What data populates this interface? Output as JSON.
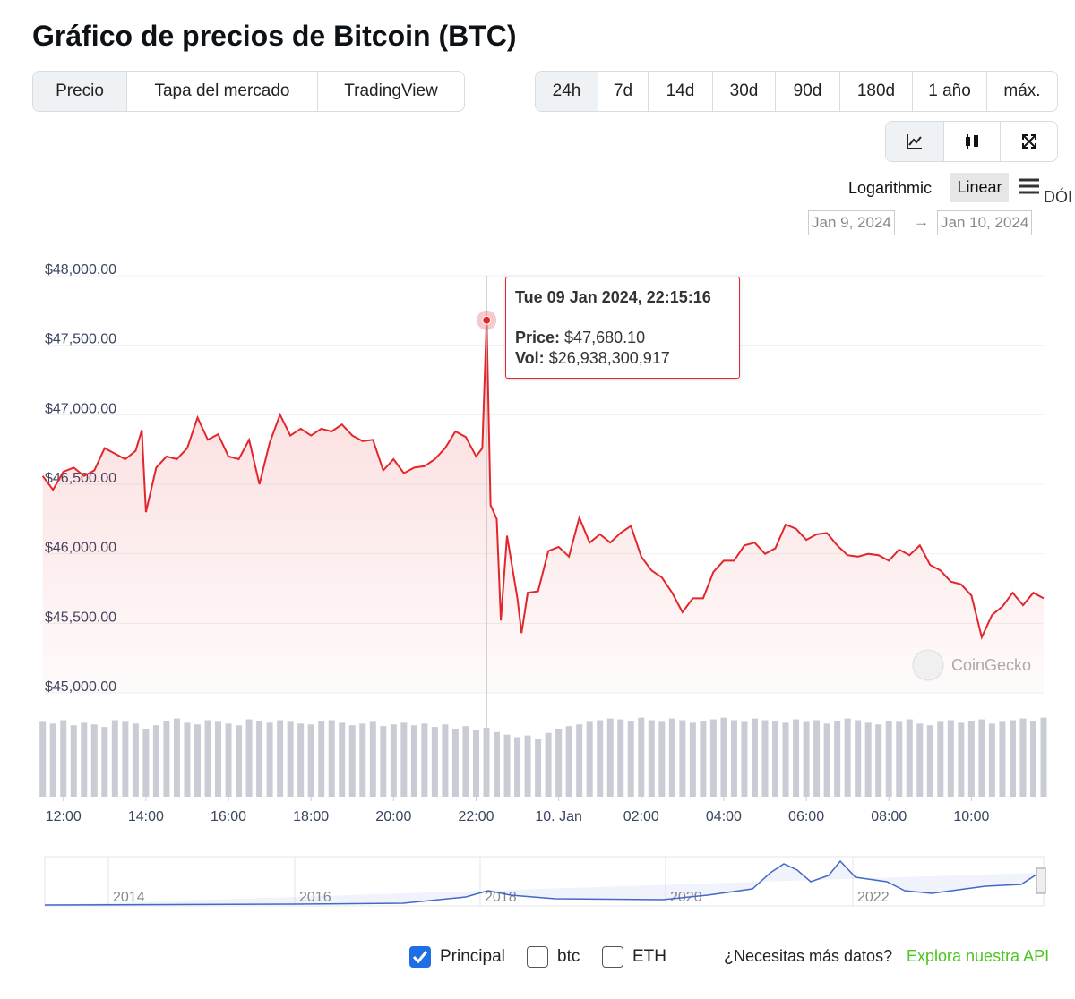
{
  "header": {
    "title": "Gráfico de precios de Bitcoin (BTC)"
  },
  "tabs": [
    "Precio",
    "Tapa del mercado",
    "TradingView"
  ],
  "ranges": [
    "24h",
    "7d",
    "14d",
    "30d",
    "90d",
    "180d",
    "1 año",
    "máx."
  ],
  "scale_options": [
    "Logarithmic",
    "Linear"
  ],
  "menu_overflow": "DÓI",
  "date_from": "Jan 9, 2024",
  "date_to": "Jan 10, 2024",
  "watermark": "CoinGecko",
  "chart_data": {
    "type": "line",
    "xlim": [
      11.55,
      35.75
    ],
    "xticks": [
      {
        "value": 12,
        "label": "12:00"
      },
      {
        "value": 14,
        "label": "14:00"
      },
      {
        "value": 16,
        "label": "16:00"
      },
      {
        "value": 18,
        "label": "18:00"
      },
      {
        "value": 20,
        "label": "20:00"
      },
      {
        "value": 22,
        "label": "22:00"
      },
      {
        "value": 24,
        "label": "10. Jan"
      },
      {
        "value": 26,
        "label": "02:00"
      },
      {
        "value": 28,
        "label": "04:00"
      },
      {
        "value": 30,
        "label": "06:00"
      },
      {
        "value": 32,
        "label": "08:00"
      },
      {
        "value": 34,
        "label": "10:00"
      }
    ],
    "ylim": [
      45000,
      48000
    ],
    "yticks": [
      {
        "value": 48000,
        "label": "$48,000.00"
      },
      {
        "value": 47500,
        "label": "$47,500.00"
      },
      {
        "value": 47000,
        "label": "$47,000.00"
      },
      {
        "value": 46500,
        "label": "$46,500.00"
      },
      {
        "value": 46000,
        "label": "$46,000.00"
      },
      {
        "value": 45500,
        "label": "$45,500.00"
      },
      {
        "value": 45000,
        "label": "$45,000.00"
      }
    ],
    "grid": true,
    "y2lim": [
      0,
      100
    ],
    "series": [
      {
        "color": "#e3262b",
        "x": [
          11.5,
          11.75,
          12,
          12.25,
          12.5,
          12.75,
          13,
          13.25,
          13.5,
          13.75,
          13.9,
          14,
          14.25,
          14.5,
          14.75,
          15,
          15.25,
          15.5,
          15.75,
          16,
          16.25,
          16.5,
          16.75,
          17,
          17.25,
          17.5,
          17.75,
          18,
          18.25,
          18.5,
          18.75,
          19,
          19.25,
          19.5,
          19.75,
          20,
          20.25,
          20.5,
          20.75,
          21,
          21.25,
          21.5,
          21.75,
          22,
          22.15,
          22.254,
          22.35,
          22.5,
          22.6,
          22.75,
          23,
          23.1,
          23.25,
          23.5,
          23.75,
          24,
          24.25,
          24.5,
          24.75,
          25,
          25.25,
          25.5,
          25.75,
          26,
          26.25,
          26.5,
          26.75,
          27,
          27.25,
          27.5,
          27.75,
          28,
          28.25,
          28.5,
          28.75,
          29,
          29.25,
          29.5,
          29.75,
          30,
          30.25,
          30.5,
          30.75,
          31,
          31.25,
          31.5,
          31.75,
          32,
          32.25,
          32.5,
          32.75,
          33,
          33.25,
          33.5,
          33.75,
          34,
          34.25,
          34.5,
          34.75,
          35,
          35.25,
          35.5,
          35.75
        ],
        "values": [
          46560,
          46460,
          46590,
          46620,
          46560,
          46600,
          46760,
          46720,
          46680,
          46740,
          46890,
          46300,
          46620,
          46700,
          46680,
          46760,
          46980,
          46820,
          46860,
          46700,
          46680,
          46820,
          46500,
          46800,
          47000,
          46850,
          46900,
          46850,
          46900,
          46880,
          46930,
          46850,
          46810,
          46820,
          46600,
          46680,
          46580,
          46620,
          46630,
          46680,
          46760,
          46880,
          46840,
          46700,
          46760,
          47680.1,
          46350,
          46250,
          45520,
          46130,
          45680,
          45430,
          45720,
          45730,
          46020,
          46050,
          45980,
          46260,
          46080,
          46140,
          46080,
          46150,
          46200,
          45980,
          45880,
          45830,
          45720,
          45580,
          45680,
          45680,
          45870,
          45950,
          45950,
          46060,
          46080,
          46000,
          46040,
          46210,
          46180,
          46100,
          46140,
          46150,
          46060,
          45990,
          45980,
          46000,
          45990,
          45950,
          46030,
          45990,
          46060,
          45920,
          45880,
          45800,
          45780,
          45700,
          45400,
          45560,
          45620,
          45720,
          45630,
          45720,
          45680
        ]
      },
      {
        "type": "bar",
        "axis": "y2",
        "color": "#c9ccd5",
        "x": [
          11.5,
          11.75,
          12,
          12.25,
          12.5,
          12.75,
          13,
          13.25,
          13.5,
          13.75,
          14,
          14.25,
          14.5,
          14.75,
          15,
          15.25,
          15.5,
          15.75,
          16,
          16.25,
          16.5,
          16.75,
          17,
          17.25,
          17.5,
          17.75,
          18,
          18.25,
          18.5,
          18.75,
          19,
          19.25,
          19.5,
          19.75,
          20,
          20.25,
          20.5,
          20.75,
          21,
          21.25,
          21.5,
          21.75,
          22,
          22.25,
          22.5,
          22.75,
          23,
          23.25,
          23.5,
          23.75,
          24,
          24.25,
          24.5,
          24.75,
          25,
          25.25,
          25.5,
          25.75,
          26,
          26.25,
          26.5,
          26.75,
          27,
          27.25,
          27.5,
          27.75,
          28,
          28.25,
          28.5,
          28.75,
          29,
          29.25,
          29.5,
          29.75,
          30,
          30.25,
          30.5,
          30.75,
          31,
          31.25,
          31.5,
          31.75,
          32,
          32.25,
          32.5,
          32.75,
          33,
          33.25,
          33.5,
          33.75,
          34,
          34.25,
          34.5,
          34.75,
          35,
          35.25,
          35.5,
          35.75
        ],
        "values": [
          88,
          86,
          90,
          84,
          87,
          85,
          82,
          90,
          88,
          86,
          80,
          84,
          89,
          92,
          87,
          85,
          90,
          88,
          86,
          84,
          91,
          89,
          87,
          90,
          88,
          86,
          85,
          89,
          90,
          87,
          84,
          86,
          88,
          83,
          85,
          87,
          84,
          86,
          82,
          85,
          80,
          83,
          78,
          81,
          76,
          73,
          70,
          72,
          68,
          75,
          80,
          83,
          85,
          88,
          90,
          92,
          91,
          89,
          93,
          90,
          88,
          92,
          90,
          87,
          89,
          91,
          93,
          90,
          88,
          92,
          90,
          89,
          87,
          91,
          88,
          90,
          86,
          89,
          92,
          90,
          87,
          85,
          89,
          88,
          91,
          86,
          84,
          88,
          90,
          87,
          89,
          91,
          86,
          88,
          90,
          92,
          89,
          93
        ]
      }
    ]
  },
  "tooltip": {
    "title": "Tue 09 Jan 2024, 22:15:16",
    "price_label": "Price:",
    "price": "$47,680.10",
    "vol_label": "Vol:",
    "vol": "$26,938,300,917"
  },
  "navigator": {
    "years": [
      "2014",
      "2016",
      "2018",
      "2020",
      "2022"
    ]
  },
  "footer": {
    "options": [
      "Principal",
      "btc",
      "ETH"
    ],
    "question": "¿Necesitas más datos?",
    "link": "Explora nuestra API"
  }
}
